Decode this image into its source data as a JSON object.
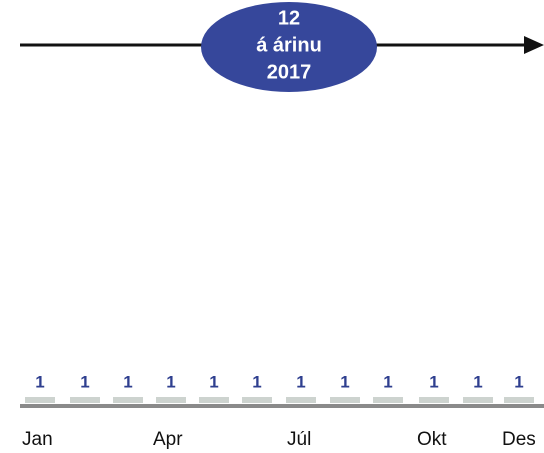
{
  "badge": {
    "lines": [
      "12",
      "á árinu",
      "2017"
    ]
  },
  "counts": [
    1,
    1,
    1,
    1,
    1,
    1,
    1,
    1,
    1,
    1,
    1,
    1
  ],
  "months": [
    "Jan",
    "Apr",
    "Júl",
    "Okt",
    "Des"
  ]
}
